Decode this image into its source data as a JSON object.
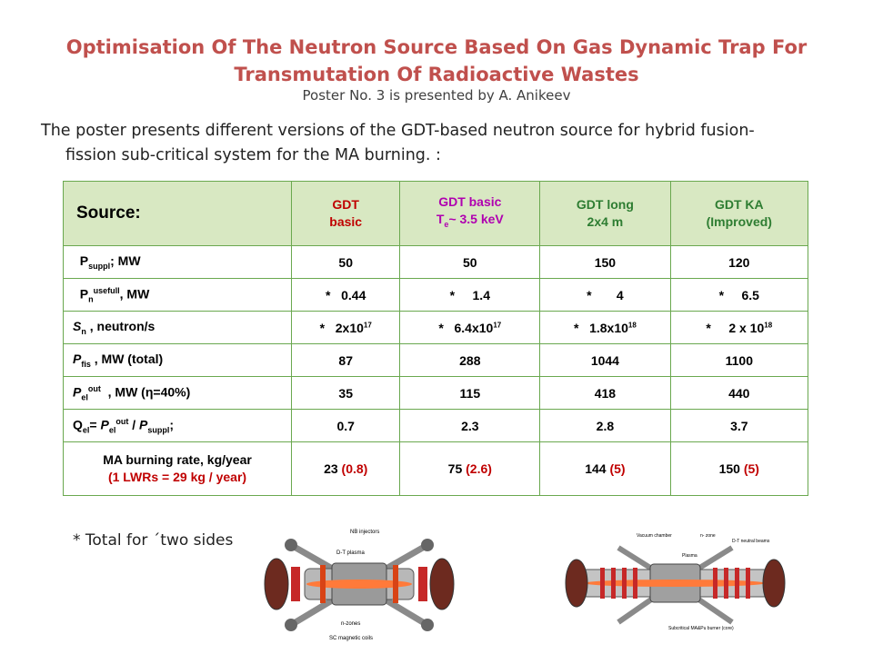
{
  "title": {
    "line1": "Optimisation Of The Neutron Source Based On Gas Dynamic Trap For",
    "line2": "Transmutation Of Radioactive Wastes",
    "subtitle": "Poster No. 3 is presented  by A.  Anikeev"
  },
  "intro": {
    "line1": "The poster presents different versions of the GDT-based neutron source for hybrid fusion-",
    "line2": "fission sub-critical system for the MA burning. :"
  },
  "table": {
    "header": {
      "source": "Source:",
      "col1_l1": "GDT",
      "col1_l2": "basic",
      "col2_l1": "GDT basic",
      "col2_t": "T",
      "col2_sub": "e",
      "col2_rest": "~ 3.5 keV",
      "col3_l1": "GDT long",
      "col3_l2": "2x4 m",
      "col4_l1": "GDT KA",
      "col4_l2": "(Improved)"
    },
    "rows": {
      "psuppl": {
        "p": "P",
        "sub": "suppl",
        "rest": "; MW",
        "v": [
          "50",
          "50",
          "150",
          "120"
        ]
      },
      "pn": {
        "p": "P",
        "sub": "n",
        "sup": "usefull",
        "rest": ",  MW",
        "v": [
          "*   0.44",
          "*     1.4",
          "*       4",
          "*     6.5"
        ]
      },
      "sn": {
        "s": "S",
        "sub": "n",
        "rest": " ,  neutron/s",
        "v1a": "*   2x10",
        "v1e": "17",
        "v2a": "*   6.4x10",
        "v2e": "17",
        "v3a": "*   1.8x10",
        "v3e": "18",
        "v4a": "*     2 x 10",
        "v4e": "18"
      },
      "pfis": {
        "p": "P",
        "sub": "fis",
        "rest": " , MW (total)",
        "v": [
          "87",
          "288",
          "1044",
          "1100"
        ]
      },
      "pel": {
        "p": "P",
        "sub": "el",
        "sup": "out",
        "rest": "  , MW (η=40%)",
        "v": [
          "35",
          "115",
          "418",
          "440"
        ]
      },
      "qel": {
        "q": "Q",
        "qsub": "el",
        "eq": "= ",
        "p": "P",
        "psub": "el",
        "psup": "out",
        "slash": " / ",
        "p2": "P",
        "p2sub": "suppl",
        "semi": ";",
        "v": [
          "0.7",
          "2.3",
          "2.8",
          "3.7"
        ]
      },
      "ma": {
        "l1": "MA burning rate, kg/year",
        "l2": "(1 LWRs = 29 kg / year)",
        "v": [
          {
            "a": "23 ",
            "b": "(0.8)"
          },
          {
            "a": "75 ",
            "b": "(2.6)"
          },
          {
            "a": "144 ",
            "b": "(5)"
          },
          {
            "a": "150 ",
            "b": "(5)"
          }
        ]
      }
    }
  },
  "footnote": "* Total for ´two sides",
  "diagram_left": {
    "labels": [
      "NB injectors",
      "D-T plasma",
      "n-zones",
      "SC magnetic coils"
    ]
  },
  "diagram_right": {
    "labels": [
      "Vacuum chamber",
      "n- zone",
      "Plasma",
      "D-T neutral beams",
      "Subcritical MA&Pu burner (core)"
    ]
  },
  "colors": {
    "title": "#c0504d",
    "header_bg": "#d8e8c2",
    "border": "#6aa84f"
  }
}
